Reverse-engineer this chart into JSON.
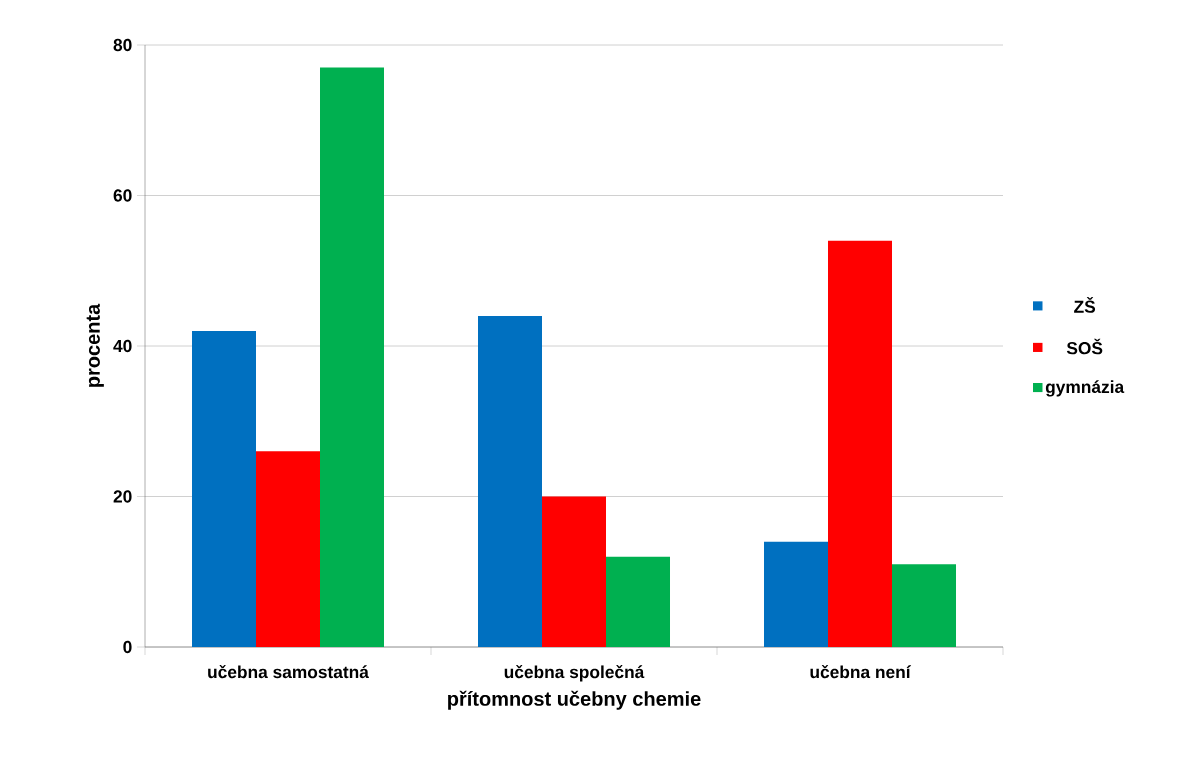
{
  "chart_data": {
    "type": "bar",
    "xlabel": "přítomnost učebny chemie",
    "ylabel": "procenta",
    "categories": [
      "učebna samostatná",
      "učebna společná",
      "učebna není"
    ],
    "series": [
      {
        "name": "ZŠ",
        "color": "#0070c0",
        "values": [
          42,
          44,
          14
        ]
      },
      {
        "name": "SOŠ",
        "color": "#ff0000",
        "values": [
          26,
          20,
          54
        ]
      },
      {
        "name": "gymnázia",
        "color": "#00b050",
        "values": [
          77,
          12,
          11
        ]
      }
    ],
    "ylim": [
      0,
      80
    ],
    "yticks": [
      0,
      20,
      40,
      60,
      80
    ],
    "grid": "y",
    "legend": "right"
  }
}
